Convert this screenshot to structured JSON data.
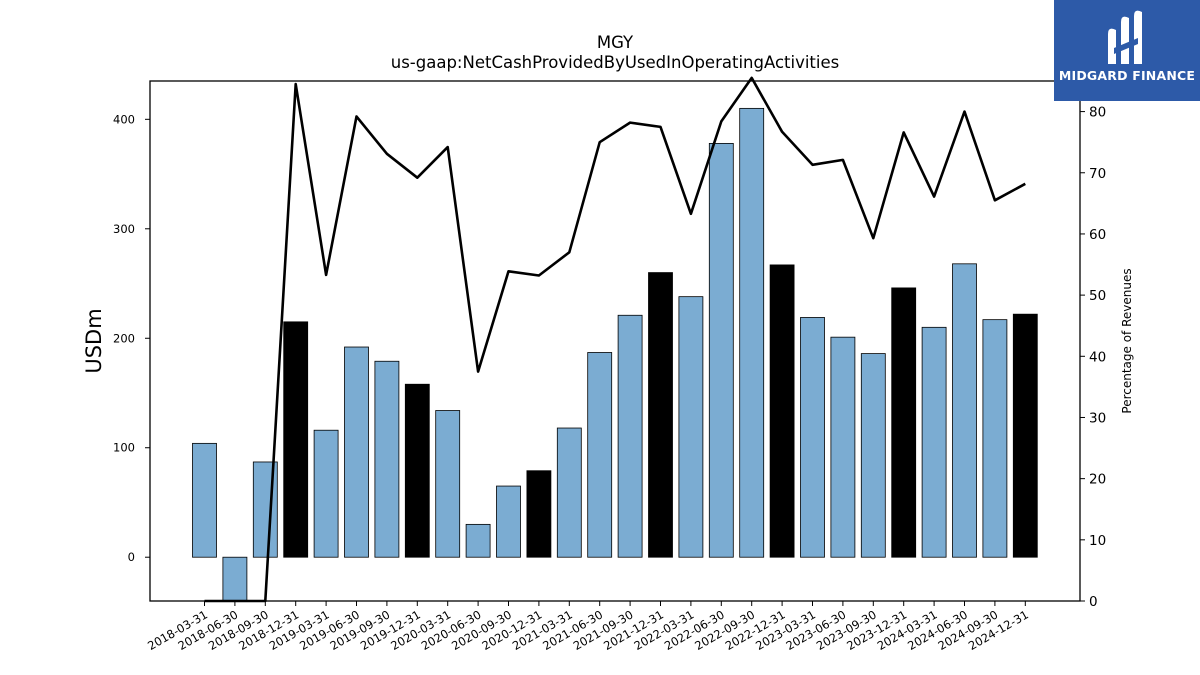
{
  "chart_data": {
    "type": "bar",
    "title": "MGY",
    "subtitle": "us-gaap:NetCashProvidedByUsedInOperatingActivities",
    "ylabel": "USDm",
    "y2label": "Percentage of Revenues",
    "ylim": [
      -40,
      435
    ],
    "y2lim": [
      0,
      85
    ],
    "yticks": [
      0,
      100,
      200,
      300,
      400
    ],
    "y2ticks": [
      0,
      10,
      20,
      30,
      40,
      50,
      60,
      70,
      80
    ],
    "categories": [
      "2018-03-31",
      "2018-06-30",
      "2018-09-30",
      "2018-12-31",
      "2019-03-31",
      "2019-06-30",
      "2019-09-30",
      "2019-12-31",
      "2020-03-31",
      "2020-06-30",
      "2020-09-30",
      "2020-12-31",
      "2021-03-31",
      "2021-06-30",
      "2021-09-30",
      "2021-12-31",
      "2022-03-31",
      "2022-06-30",
      "2022-09-30",
      "2022-12-31",
      "2023-03-31",
      "2023-06-30",
      "2023-09-30",
      "2023-12-31",
      "2024-03-31",
      "2024-06-30",
      "2024-09-30",
      "2024-12-31"
    ],
    "series": [
      {
        "kind": "bar",
        "values": [
          104,
          -40,
          87,
          215,
          116,
          192,
          179,
          158,
          134,
          30,
          65,
          79,
          118,
          187,
          221,
          260,
          238,
          378,
          410,
          267,
          219,
          201,
          186,
          246,
          210,
          268,
          217,
          222
        ],
        "highlight": [
          false,
          false,
          false,
          true,
          false,
          false,
          false,
          true,
          false,
          false,
          false,
          true,
          false,
          false,
          false,
          true,
          false,
          false,
          false,
          true,
          false,
          false,
          false,
          true,
          false,
          false,
          false,
          true
        ],
        "color": "#7bacd2",
        "highlight_color": "#000000"
      },
      {
        "kind": "line",
        "axis": "right",
        "values": [
          0,
          0,
          0,
          84.5,
          53.3,
          79.2,
          73.1,
          69.2,
          74.2,
          37.5,
          53.9,
          53.2,
          57.0,
          75.0,
          78.2,
          77.5,
          63.3,
          78.4,
          85.5,
          76.7,
          71.3,
          72.1,
          59.3,
          76.6,
          66.1,
          80.0,
          65.5,
          68.2
        ],
        "color": "#000000"
      }
    ],
    "logo": "MIDGARD FINANCE"
  }
}
